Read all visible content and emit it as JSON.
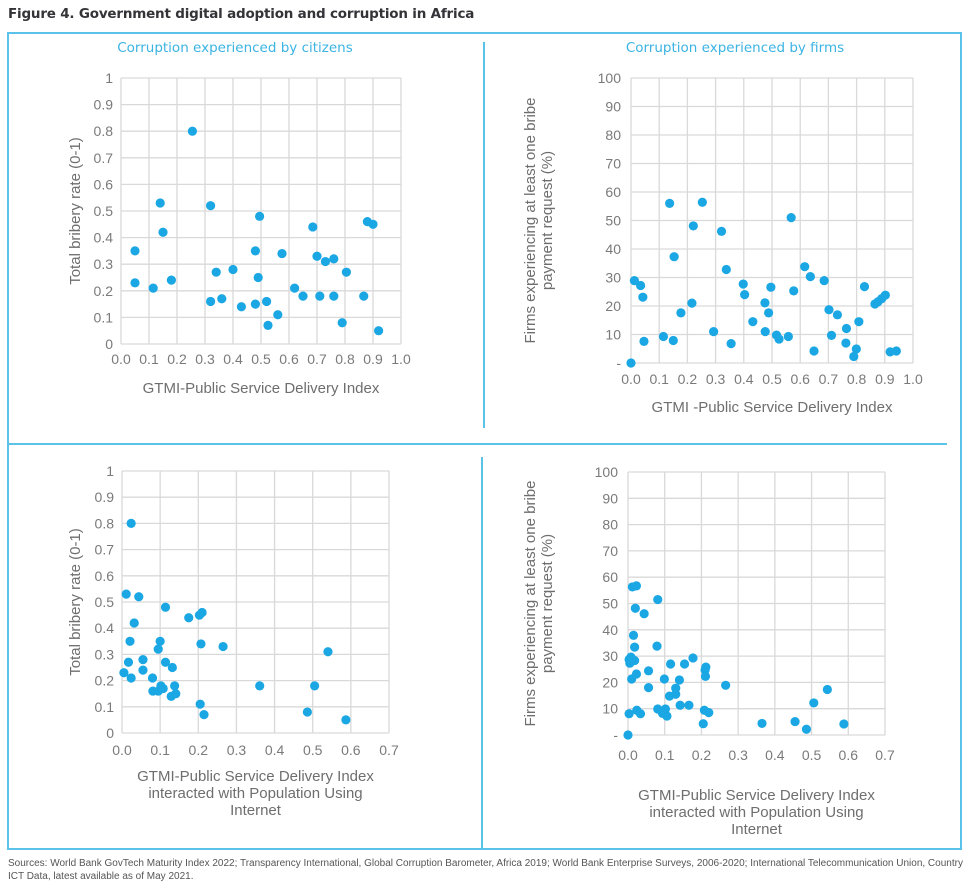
{
  "figure_title": "Figure 4. Government digital adoption and corruption in Africa",
  "panels": {
    "citizens_title": "Corruption experienced by citizens",
    "firms_title": "Corruption experienced by firms"
  },
  "sources": "Sources: World Bank GovTech Maturity Index 2022; Transparency International, Global Corruption Barometer, Africa 2019; World Bank Enterprise Surveys, 2006-2020; International Telecommunication Union, Country ICT Data, latest available as of May 2021.",
  "colors": {
    "marker": "#1aa7e3",
    "frame": "#5bc2ea",
    "grid": "#d9d9d9",
    "panel_title": "#3bb3e3"
  },
  "chart_data": [
    {
      "id": "top-left",
      "type": "scatter",
      "title": "Corruption experienced by citizens",
      "xlabel": [
        "GTMI-Public Service Delivery Index"
      ],
      "ylabel": [
        "Total bribery rate (0-1)"
      ],
      "xlim": [
        0,
        1.0
      ],
      "ylim": [
        0,
        1
      ],
      "xticks": [
        0.0,
        0.1,
        0.2,
        0.3,
        0.4,
        0.5,
        0.6,
        0.7,
        0.8,
        0.9,
        1.0
      ],
      "xtick_labels": [
        "0.0",
        "0.1",
        "0.2",
        "0.3",
        "0.4",
        "0.5",
        "0.6",
        "0.7",
        "0.8",
        "0.9",
        "1.0"
      ],
      "yticks": [
        0,
        0.1,
        0.2,
        0.3,
        0.4,
        0.5,
        0.6,
        0.7,
        0.8,
        0.9,
        1
      ],
      "ytick_labels": [
        "0",
        "0.1",
        "0.2",
        "0.3",
        "0.4",
        "0.5",
        "0.6",
        "0.7",
        "0.8",
        "0.9",
        "1"
      ],
      "grid": true,
      "points": [
        [
          0.05,
          0.35
        ],
        [
          0.05,
          0.23
        ],
        [
          0.115,
          0.21
        ],
        [
          0.14,
          0.53
        ],
        [
          0.15,
          0.42
        ],
        [
          0.18,
          0.24
        ],
        [
          0.255,
          0.8
        ],
        [
          0.32,
          0.52
        ],
        [
          0.32,
          0.16
        ],
        [
          0.34,
          0.27
        ],
        [
          0.36,
          0.17
        ],
        [
          0.4,
          0.28
        ],
        [
          0.43,
          0.14
        ],
        [
          0.48,
          0.35
        ],
        [
          0.48,
          0.15
        ],
        [
          0.49,
          0.25
        ],
        [
          0.495,
          0.48
        ],
        [
          0.52,
          0.16
        ],
        [
          0.525,
          0.07
        ],
        [
          0.56,
          0.11
        ],
        [
          0.575,
          0.34
        ],
        [
          0.62,
          0.21
        ],
        [
          0.65,
          0.18
        ],
        [
          0.685,
          0.44
        ],
        [
          0.7,
          0.33
        ],
        [
          0.71,
          0.18
        ],
        [
          0.73,
          0.31
        ],
        [
          0.76,
          0.32
        ],
        [
          0.76,
          0.18
        ],
        [
          0.79,
          0.08
        ],
        [
          0.805,
          0.27
        ],
        [
          0.867,
          0.18
        ],
        [
          0.88,
          0.46
        ],
        [
          0.9,
          0.45
        ],
        [
          0.92,
          0.05
        ]
      ]
    },
    {
      "id": "top-right",
      "type": "scatter",
      "title": "Corruption experienced by firms",
      "xlabel": [
        "GTMI -Public Service Delivery Index"
      ],
      "ylabel": [
        "Firms experiencing at least one bribe",
        "payment request  (%)"
      ],
      "xlim": [
        0,
        1.0
      ],
      "ylim": [
        0,
        100
      ],
      "xticks": [
        0.0,
        0.1,
        0.2,
        0.3,
        0.4,
        0.5,
        0.6,
        0.7,
        0.8,
        0.9,
        1.0
      ],
      "xtick_labels": [
        "0.0",
        "0.1",
        "0.2",
        "0.3",
        "0.4",
        "0.5",
        "0.6",
        "0.7",
        "0.8",
        "0.9",
        "1.0"
      ],
      "yticks": [
        0,
        10,
        20,
        30,
        40,
        50,
        60,
        70,
        80,
        90,
        100
      ],
      "ytick_labels": [
        "-",
        "10",
        "20",
        "30",
        "40",
        "50",
        "60",
        "70",
        "80",
        "90",
        "100"
      ],
      "grid": true,
      "points": [
        [
          0.0,
          0
        ],
        [
          0.012,
          28.9
        ],
        [
          0.034,
          27.2
        ],
        [
          0.042,
          23.1
        ],
        [
          0.046,
          7.6
        ],
        [
          0.115,
          9.3
        ],
        [
          0.137,
          56.0
        ],
        [
          0.15,
          7.9
        ],
        [
          0.153,
          37.3
        ],
        [
          0.177,
          17.6
        ],
        [
          0.216,
          21.0
        ],
        [
          0.221,
          48.1
        ],
        [
          0.253,
          56.4
        ],
        [
          0.293,
          11.0
        ],
        [
          0.321,
          46.2
        ],
        [
          0.338,
          32.8
        ],
        [
          0.355,
          6.8
        ],
        [
          0.398,
          27.7
        ],
        [
          0.403,
          24.0
        ],
        [
          0.432,
          14.5
        ],
        [
          0.475,
          21.1
        ],
        [
          0.476,
          11.0
        ],
        [
          0.488,
          17.6
        ],
        [
          0.496,
          26.6
        ],
        [
          0.516,
          9.8
        ],
        [
          0.525,
          8.4
        ],
        [
          0.558,
          9.3
        ],
        [
          0.568,
          51.0
        ],
        [
          0.577,
          25.3
        ],
        [
          0.616,
          33.8
        ],
        [
          0.636,
          30.3
        ],
        [
          0.649,
          4.2
        ],
        [
          0.685,
          28.9
        ],
        [
          0.702,
          18.7
        ],
        [
          0.711,
          9.7
        ],
        [
          0.732,
          16.9
        ],
        [
          0.764,
          12.1
        ],
        [
          0.762,
          7.0
        ],
        [
          0.79,
          2.3
        ],
        [
          0.799,
          4.9
        ],
        [
          0.808,
          14.5
        ],
        [
          0.828,
          26.8
        ],
        [
          0.865,
          20.7
        ],
        [
          0.876,
          21.5
        ],
        [
          0.889,
          22.6
        ],
        [
          0.902,
          23.8
        ],
        [
          0.919,
          3.9
        ],
        [
          0.941,
          4.2
        ]
      ]
    },
    {
      "id": "bottom-left",
      "type": "scatter",
      "title": "",
      "xlabel": [
        "GTMI-Public Service Delivery Index",
        "interacted with Population Using",
        "Internet"
      ],
      "ylabel": [
        "Total bribery rate (0-1)"
      ],
      "xlim": [
        0,
        0.7
      ],
      "ylim": [
        0,
        1
      ],
      "xticks": [
        0.0,
        0.1,
        0.2,
        0.3,
        0.4,
        0.5,
        0.6,
        0.7
      ],
      "xtick_labels": [
        "0.0",
        "0.1",
        "0.2",
        "0.3",
        "0.4",
        "0.5",
        "0.6",
        "0.7"
      ],
      "yticks": [
        0,
        0.1,
        0.2,
        0.3,
        0.4,
        0.5,
        0.6,
        0.7,
        0.8,
        0.9,
        1
      ],
      "ytick_labels": [
        "0",
        "0.1",
        "0.2",
        "0.3",
        "0.4",
        "0.5",
        "0.6",
        "0.7",
        "0.8",
        "0.9",
        "1"
      ],
      "grid": true,
      "points": [
        [
          0.005,
          0.23
        ],
        [
          0.011,
          0.53
        ],
        [
          0.017,
          0.27
        ],
        [
          0.021,
          0.35
        ],
        [
          0.024,
          0.8
        ],
        [
          0.024,
          0.21
        ],
        [
          0.032,
          0.42
        ],
        [
          0.044,
          0.52
        ],
        [
          0.055,
          0.28
        ],
        [
          0.055,
          0.24
        ],
        [
          0.08,
          0.21
        ],
        [
          0.081,
          0.16
        ],
        [
          0.095,
          0.16
        ],
        [
          0.095,
          0.32
        ],
        [
          0.1,
          0.35
        ],
        [
          0.102,
          0.18
        ],
        [
          0.108,
          0.17
        ],
        [
          0.114,
          0.48
        ],
        [
          0.114,
          0.27
        ],
        [
          0.129,
          0.14
        ],
        [
          0.132,
          0.25
        ],
        [
          0.138,
          0.18
        ],
        [
          0.141,
          0.15
        ],
        [
          0.175,
          0.44
        ],
        [
          0.203,
          0.45
        ],
        [
          0.21,
          0.46
        ],
        [
          0.207,
          0.34
        ],
        [
          0.205,
          0.11
        ],
        [
          0.215,
          0.07
        ],
        [
          0.265,
          0.33
        ],
        [
          0.361,
          0.18
        ],
        [
          0.486,
          0.08
        ],
        [
          0.505,
          0.18
        ],
        [
          0.54,
          0.31
        ],
        [
          0.587,
          0.05
        ]
      ]
    },
    {
      "id": "bottom-right",
      "type": "scatter",
      "title": "",
      "xlabel": [
        "GTMI-Public Service Delivery Index",
        "interacted with Population Using",
        "Internet"
      ],
      "ylabel": [
        "Firms experiencing at least one bribe",
        "payment request  (%)"
      ],
      "xlim": [
        0,
        0.7
      ],
      "ylim": [
        0,
        100
      ],
      "xticks": [
        0.0,
        0.1,
        0.2,
        0.3,
        0.4,
        0.5,
        0.6,
        0.7
      ],
      "xtick_labels": [
        "0.0",
        "0.1",
        "0.2",
        "0.3",
        "0.4",
        "0.5",
        "0.6",
        "0.7"
      ],
      "yticks": [
        0,
        10,
        20,
        30,
        40,
        50,
        60,
        70,
        80,
        90,
        100
      ],
      "ytick_labels": [
        "-",
        "10",
        "20",
        "30",
        "40",
        "50",
        "60",
        "70",
        "80",
        "90",
        "100"
      ],
      "grid": true,
      "points": [
        [
          0.0,
          0
        ],
        [
          0.003,
          8.1
        ],
        [
          0.003,
          28.7
        ],
        [
          0.005,
          27.3
        ],
        [
          0.008,
          29.6
        ],
        [
          0.01,
          21.3
        ],
        [
          0.012,
          56.3
        ],
        [
          0.015,
          37.9
        ],
        [
          0.018,
          33.4
        ],
        [
          0.018,
          28.3
        ],
        [
          0.02,
          48.2
        ],
        [
          0.023,
          56.7
        ],
        [
          0.023,
          23.2
        ],
        [
          0.024,
          9.4
        ],
        [
          0.034,
          8.1
        ],
        [
          0.044,
          46.1
        ],
        [
          0.056,
          24.4
        ],
        [
          0.056,
          18.0
        ],
        [
          0.081,
          51.5
        ],
        [
          0.079,
          33.8
        ],
        [
          0.081,
          9.9
        ],
        [
          0.094,
          8.2
        ],
        [
          0.099,
          21.3
        ],
        [
          0.102,
          9.9
        ],
        [
          0.106,
          7.2
        ],
        [
          0.116,
          27.0
        ],
        [
          0.113,
          14.8
        ],
        [
          0.13,
          17.8
        ],
        [
          0.13,
          15.5
        ],
        [
          0.14,
          20.9
        ],
        [
          0.142,
          11.3
        ],
        [
          0.154,
          27.0
        ],
        [
          0.166,
          11.3
        ],
        [
          0.177,
          29.3
        ],
        [
          0.205,
          4.3
        ],
        [
          0.208,
          9.4
        ],
        [
          0.21,
          24.7
        ],
        [
          0.212,
          25.8
        ],
        [
          0.211,
          22.3
        ],
        [
          0.22,
          8.5
        ],
        [
          0.266,
          18.9
        ],
        [
          0.365,
          4.4
        ],
        [
          0.455,
          5.1
        ],
        [
          0.486,
          2.2
        ],
        [
          0.506,
          12.2
        ],
        [
          0.543,
          17.3
        ],
        [
          0.588,
          4.2
        ]
      ]
    }
  ]
}
